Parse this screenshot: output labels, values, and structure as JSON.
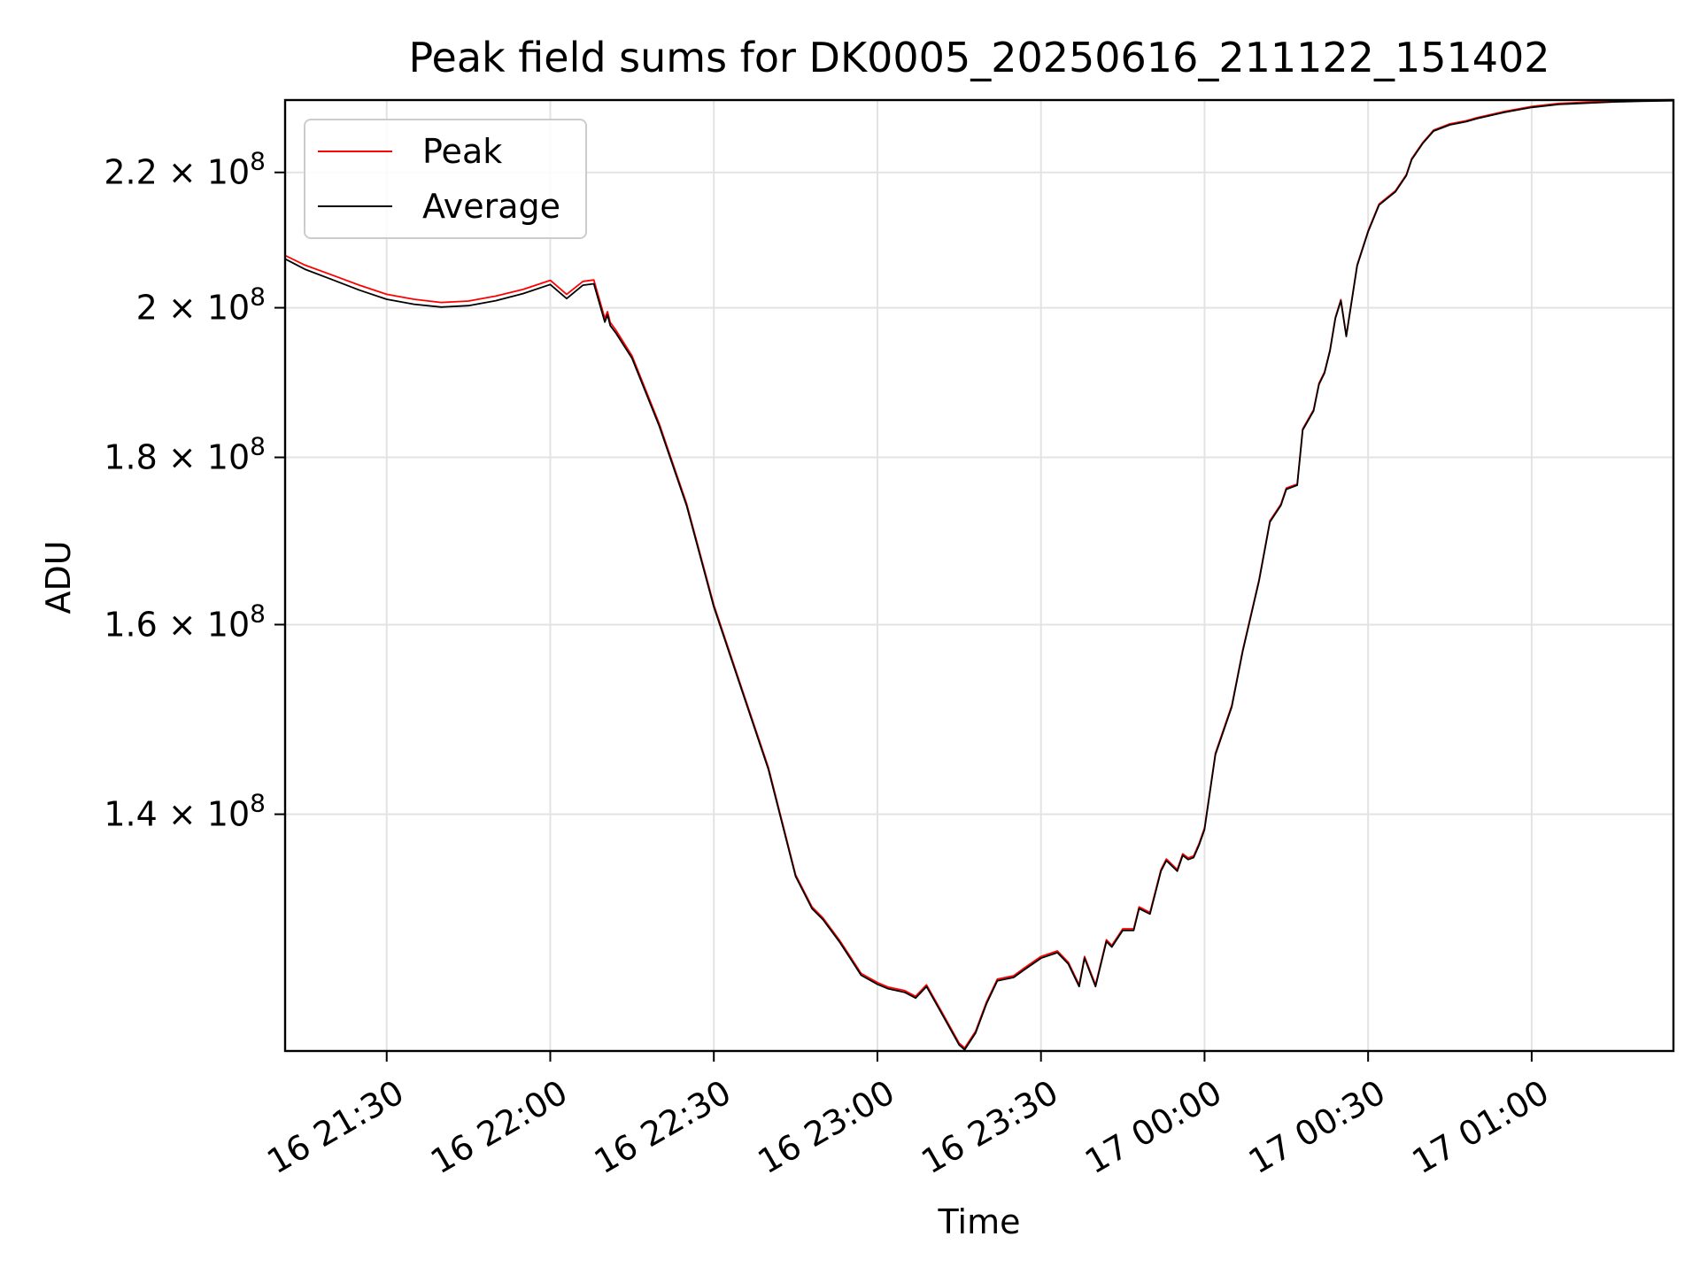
{
  "chart_data": {
    "type": "line",
    "title": "Peak field sums for DK0005_20250616_211122_151402",
    "xlabel": "Time",
    "ylabel": "ADU",
    "x_range": [
      "16 21:11:22",
      "16 01:26:00"
    ],
    "y_scale": "log",
    "ylim": [
      118500000,
      231500000
    ],
    "grid": true,
    "legend_position": "upper left",
    "x_ticks": [
      "16 21:30",
      "16 22:00",
      "16 22:30",
      "16 23:00",
      "16 23:30",
      "17 00:00",
      "17 00:30",
      "17 01:00"
    ],
    "y_ticks": [
      {
        "value": 140000000,
        "mantissa": "1.4",
        "base": "10",
        "exponent": "8"
      },
      {
        "value": 160000000,
        "mantissa": "1.6",
        "base": "10",
        "exponent": "8"
      },
      {
        "value": 180000000,
        "mantissa": "1.8",
        "base": "10",
        "exponent": "8"
      },
      {
        "value": 200000000,
        "mantissa": "2",
        "base": "10",
        "exponent": "8"
      },
      {
        "value": 220000000,
        "mantissa": "2.2",
        "base": "10",
        "exponent": "8"
      }
    ],
    "series": [
      {
        "name": "Peak",
        "color": "#ff0000"
      },
      {
        "name": "Average",
        "color": "#000000"
      }
    ],
    "x": [
      "21:11:22",
      "21:15",
      "21:20",
      "21:25",
      "21:30",
      "21:35",
      "21:40",
      "21:45",
      "21:50",
      "21:55",
      "22:00",
      "22:03",
      "22:06",
      "22:08",
      "22:10",
      "22:10:30",
      "22:11",
      "22:12",
      "22:15",
      "22:20",
      "22:25",
      "22:30",
      "22:35",
      "22:40",
      "22:45",
      "22:48",
      "22:50",
      "22:53",
      "22:55",
      "22:57",
      "23:00",
      "23:02",
      "23:05",
      "23:07",
      "23:09",
      "23:12",
      "23:15",
      "23:16",
      "23:18",
      "23:20",
      "23:22",
      "23:25",
      "23:27",
      "23:30",
      "23:33",
      "23:35",
      "23:37",
      "23:38",
      "23:40",
      "23:42",
      "23:43",
      "23:45",
      "23:47",
      "23:48",
      "23:50",
      "23:52",
      "23:53",
      "23:55",
      "23:56",
      "23:57",
      "23:58",
      "23:59",
      "00:00",
      "00:02",
      "00:05",
      "00:07",
      "00:10",
      "00:12",
      "00:14",
      "00:15",
      "00:17",
      "00:18",
      "00:20",
      "00:21",
      "00:22",
      "00:23",
      "00:24",
      "00:25",
      "00:26",
      "00:28",
      "00:30",
      "00:32",
      "00:35",
      "00:37",
      "00:38",
      "00:40",
      "00:42",
      "00:45",
      "00:48",
      "00:50",
      "00:55",
      "01:00",
      "01:05",
      "01:10",
      "01:15",
      "01:20",
      "01:26"
    ],
    "average_values": [
      207000000,
      205500000,
      204000000,
      202500000,
      201200000,
      200500000,
      200100000,
      200300000,
      201000000,
      202000000,
      203300000,
      201300000,
      203200000,
      203400000,
      198000000,
      199000000,
      197500000,
      196500000,
      193000000,
      184000000,
      174000000,
      162000000,
      153000000,
      144500000,
      134000000,
      131000000,
      130000000,
      128000000,
      126500000,
      125000000,
      124200000,
      123800000,
      123500000,
      123000000,
      124000000,
      121500000,
      119000000,
      118600000,
      120000000,
      122500000,
      124500000,
      124800000,
      125500000,
      126500000,
      127000000,
      126000000,
      124000000,
      126500000,
      124000000,
      128000000,
      127500000,
      129000000,
      129000000,
      131000000,
      130500000,
      134500000,
      135500000,
      134500000,
      136000000,
      135600000,
      135800000,
      137000000,
      138500000,
      146000000,
      151000000,
      157000000,
      165000000,
      172000000,
      174000000,
      176000000,
      176500000,
      183500000,
      186000000,
      189500000,
      191000000,
      194000000,
      198500000,
      201000000,
      196000000,
      206000000,
      211000000,
      215000000,
      217000000,
      219500000,
      222000000,
      224500000,
      226500000,
      227500000,
      228000000,
      228500000,
      229500000,
      230300000,
      230800000,
      231000000,
      231200000,
      231300000,
      231400000
    ],
    "peak_offsets": [
      500000,
      600000,
      650000,
      700000,
      700000,
      700000,
      650000,
      650000,
      650000,
      600000,
      600000,
      600000,
      550000,
      550000,
      500000,
      450000,
      450000,
      400000,
      350000,
      300000,
      250000,
      250000,
      200000,
      200000,
      150000,
      150000,
      150000,
      150000,
      150000,
      150000,
      150000,
      150000,
      150000,
      150000,
      150000,
      150000,
      150000,
      150000,
      150000,
      150000,
      150000,
      150000,
      150000,
      150000,
      150000,
      150000,
      150000,
      150000,
      150000,
      150000,
      150000,
      150000,
      150000,
      150000,
      150000,
      150000,
      150000,
      150000,
      150000,
      150000,
      150000,
      150000,
      150000,
      150000,
      150000,
      150000,
      150000,
      150000,
      150000,
      150000,
      150000,
      150000,
      150000,
      150000,
      150000,
      150000,
      150000,
      150000,
      150000,
      150000,
      150000,
      150000,
      150000,
      150000,
      150000,
      150000,
      150000,
      150000,
      150000,
      150000,
      150000,
      150000,
      150000,
      150000,
      150000,
      150000,
      150000
    ]
  }
}
